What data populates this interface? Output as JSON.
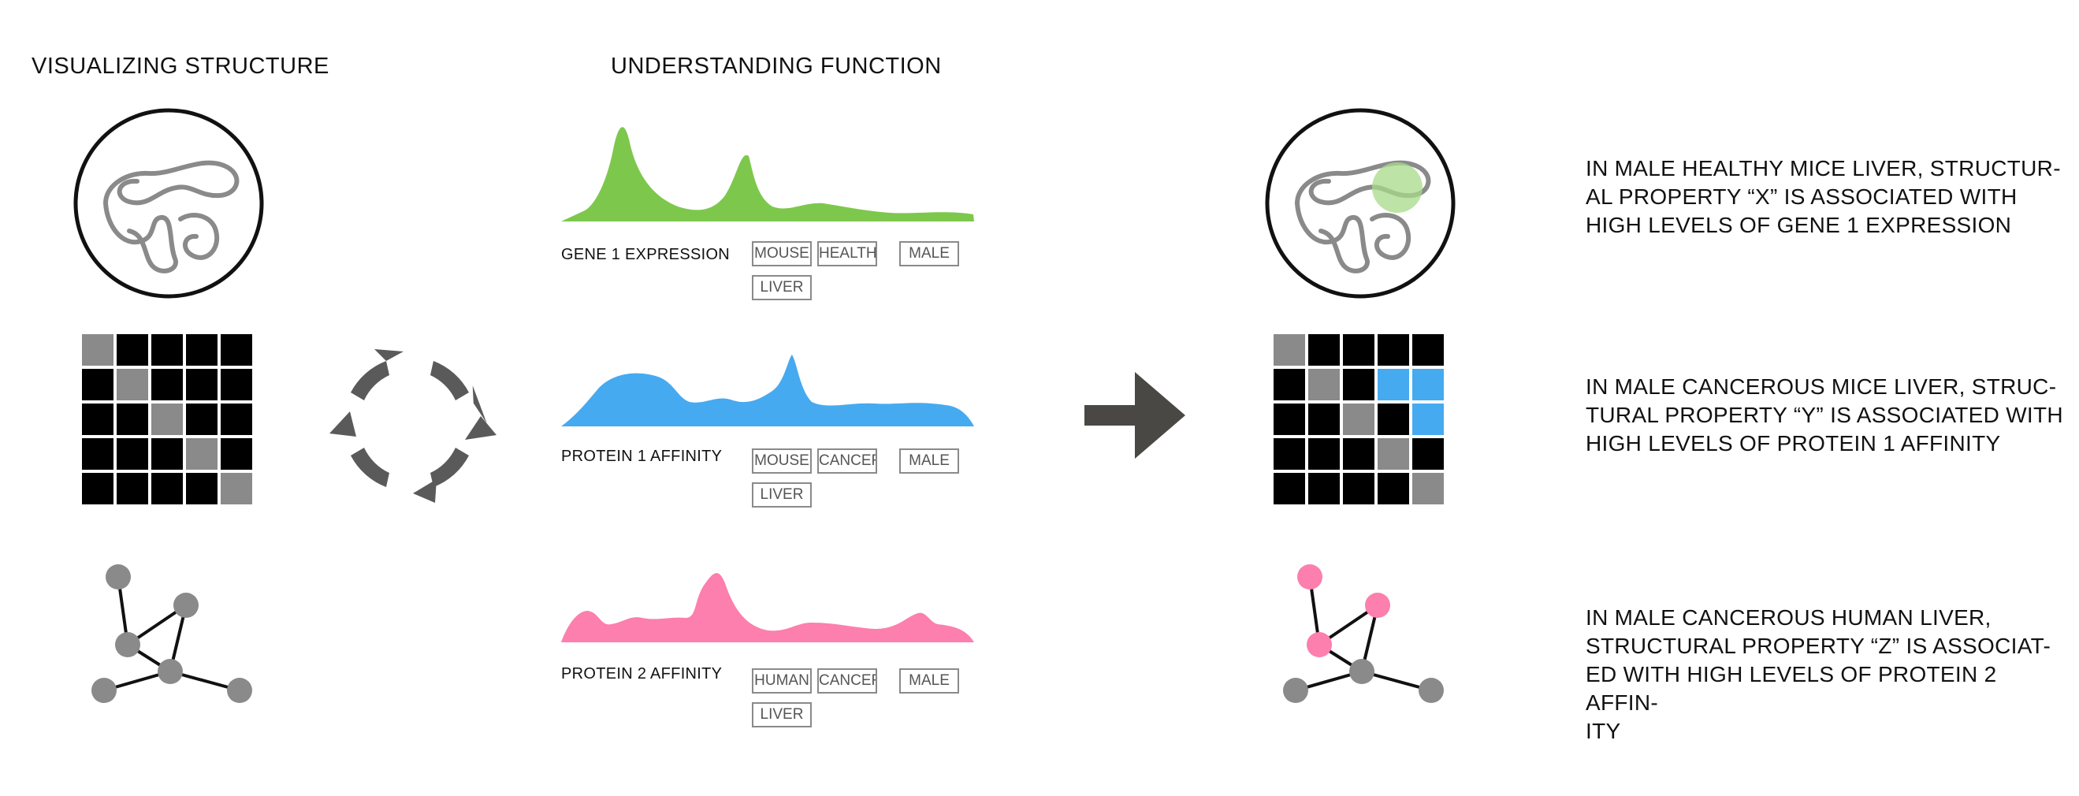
{
  "headings": {
    "structure": "VISUALIZING STRUCTURE",
    "function": "UNDERSTANDING FUNCTION"
  },
  "tracks": [
    {
      "label": "GENE 1 EXPRESSION",
      "color": "#7dc84c",
      "tags": [
        "MOUSE",
        "HEALTHY",
        "MALE",
        "LIVER"
      ]
    },
    {
      "label": "PROTEIN 1 AFFINITY",
      "color": "#46aaf0",
      "tags": [
        "MOUSE",
        "CANCER",
        "MALE",
        "LIVER"
      ]
    },
    {
      "label": "PROTEIN 2 AFFINITY",
      "color": "#fc7fad",
      "tags": [
        "HUMAN",
        "CANCER",
        "MALE",
        "LIVER"
      ]
    }
  ],
  "findings": [
    "IN MALE HEALTHY MICE LIVER, STRUCTUR-\nAL PROPERTY “X” IS ASSOCIATED WITH\nHIGH LEVELS OF GENE 1 EXPRESSION",
    "IN MALE CANCEROUS MICE LIVER, STRUC-\nTURAL PROPERTY “Y” IS ASSOCIATED WITH\nHIGH LEVELS OF PROTEIN 1 AFFINITY",
    "IN MALE CANCEROUS HUMAN LIVER,\nSTRUCTURAL PROPERTY “Z” IS ASSOCIAT-\nED WITH HIGH LEVELS OF PROTEIN 2 AFFIN-\nITY"
  ],
  "colors": {
    "gray": "#8a8a8a",
    "dark": "#555555",
    "arrow": "#4a4844",
    "highlight_green": "#a8d98a",
    "highlight_blue": "#46aaf0",
    "highlight_pink": "#fc7fad"
  },
  "icons": [
    "chromatin-loop-icon",
    "contact-matrix-icon",
    "network-graph-icon",
    "cycle-arrows-icon",
    "right-arrow-icon"
  ]
}
